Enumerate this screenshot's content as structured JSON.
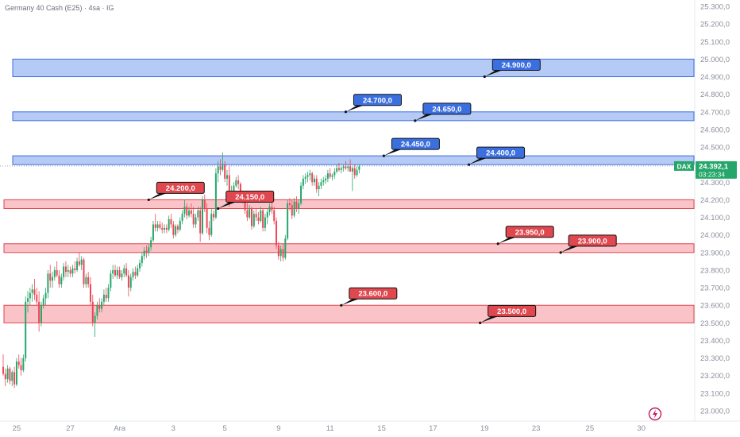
{
  "header": {
    "title": "Germany 40 Cash (E25) · 4sa · IG"
  },
  "price_tag": {
    "symbol": "DAX",
    "price": "24.392,1",
    "countdown": "03:23:34"
  },
  "chart_data": {
    "type": "candlestick",
    "ylim": [
      23000,
      25300
    ],
    "y_ticks": [
      {
        "value": 25300,
        "label": "25.300,0"
      },
      {
        "value": 25200,
        "label": "25.200,0"
      },
      {
        "value": 25100,
        "label": "25.100,0"
      },
      {
        "value": 25000,
        "label": "25.000,0"
      },
      {
        "value": 24900,
        "label": "24.900,0"
      },
      {
        "value": 24800,
        "label": "24.800,0"
      },
      {
        "value": 24700,
        "label": "24.700,0"
      },
      {
        "value": 24600,
        "label": "24.600,0"
      },
      {
        "value": 24500,
        "label": "24.500,0"
      },
      {
        "value": 24400,
        "label": "24.400,0"
      },
      {
        "value": 24300,
        "label": "24.300,0"
      },
      {
        "value": 24200,
        "label": "24.200,0"
      },
      {
        "value": 24100,
        "label": "24.100,0"
      },
      {
        "value": 24000,
        "label": "24.000,0"
      },
      {
        "value": 23900,
        "label": "23.900,0"
      },
      {
        "value": 23800,
        "label": "23.800,0"
      },
      {
        "value": 23700,
        "label": "23.700,0"
      },
      {
        "value": 23600,
        "label": "23.600,0"
      },
      {
        "value": 23500,
        "label": "23.500,0"
      },
      {
        "value": 23400,
        "label": "23.400,0"
      },
      {
        "value": 23300,
        "label": "23.300,0"
      },
      {
        "value": 23200,
        "label": "23.200,0"
      },
      {
        "value": 23100,
        "label": "23.100,0"
      },
      {
        "value": 23000,
        "label": "23.000,0"
      }
    ],
    "x_ticks": [
      {
        "label": "25",
        "bar": 6
      },
      {
        "label": "27",
        "bar": 30
      },
      {
        "label": "Ara",
        "bar": 52
      },
      {
        "label": "3",
        "bar": 76
      },
      {
        "label": "5",
        "bar": 99
      },
      {
        "label": "9",
        "bar": 123
      },
      {
        "label": "11",
        "bar": 146
      },
      {
        "label": "15",
        "bar": 169
      },
      {
        "label": "17",
        "bar": 192
      },
      {
        "label": "19",
        "bar": 215
      },
      {
        "label": "23",
        "bar": 238
      },
      {
        "label": "25",
        "bar": 262
      },
      {
        "label": "30",
        "bar": 285
      }
    ],
    "zones": [
      {
        "top": 25000,
        "bottom": 24900,
        "color": "#3b6fe0",
        "fill": "#a9c1f5",
        "start_bar": 5
      },
      {
        "top": 24700,
        "bottom": 24650,
        "color": "#3b6fe0",
        "fill": "#a9c1f5",
        "start_bar": 5
      },
      {
        "top": 24450,
        "bottom": 24400,
        "color": "#3b6fe0",
        "fill": "#a9c1f5",
        "start_bar": 5
      },
      {
        "top": 24200,
        "bottom": 24150,
        "color": "#e0474f",
        "fill": "#f8b8bd",
        "start_bar": 1
      },
      {
        "top": 23950,
        "bottom": 23900,
        "color": "#e0474f",
        "fill": "#f8b8bd",
        "start_bar": 1
      },
      {
        "top": 23600,
        "bottom": 23500,
        "color": "#e0474f",
        "fill": "#f8b8bd",
        "start_bar": 1
      }
    ],
    "callouts": [
      {
        "label": "24.900,0",
        "value": 24900,
        "bar": 215,
        "kind": "resistance"
      },
      {
        "label": "24.700,0",
        "value": 24700,
        "bar": 153,
        "kind": "resistance"
      },
      {
        "label": "24.650,0",
        "value": 24650,
        "bar": 184,
        "kind": "resistance"
      },
      {
        "label": "24.450,0",
        "value": 24450,
        "bar": 170,
        "kind": "resistance"
      },
      {
        "label": "24.400,0",
        "value": 24400,
        "bar": 208,
        "kind": "resistance"
      },
      {
        "label": "24.200,0",
        "value": 24200,
        "bar": 65,
        "kind": "support"
      },
      {
        "label": "24.150,0",
        "value": 24150,
        "bar": 96,
        "kind": "support"
      },
      {
        "label": "23.950,0",
        "value": 23950,
        "bar": 221,
        "kind": "support"
      },
      {
        "label": "23.900,0",
        "value": 23900,
        "bar": 249,
        "kind": "support"
      },
      {
        "label": "23.600,0",
        "value": 23600,
        "bar": 151,
        "kind": "support"
      },
      {
        "label": "23.500,0",
        "value": 23500,
        "bar": 213,
        "kind": "support"
      }
    ],
    "current_price": 24392.1,
    "colors": {
      "up": "#26a66b",
      "down": "#ee4655",
      "resistance": "#3b6fe0",
      "support": "#e0474f"
    },
    "candles": [
      [
        23250,
        23320,
        23200,
        23210
      ],
      [
        23210,
        23240,
        23140,
        23180
      ],
      [
        23180,
        23260,
        23160,
        23240
      ],
      [
        23240,
        23250,
        23150,
        23170
      ],
      [
        23170,
        23230,
        23140,
        23220
      ],
      [
        23220,
        23250,
        23130,
        23150
      ],
      [
        23150,
        23300,
        23140,
        23280
      ],
      [
        23280,
        23320,
        23240,
        23260
      ],
      [
        23260,
        23300,
        23200,
        23230
      ],
      [
        23230,
        23320,
        23220,
        23300
      ],
      [
        23300,
        23650,
        23280,
        23620
      ],
      [
        23620,
        23680,
        23560,
        23640
      ],
      [
        23640,
        23700,
        23600,
        23670
      ],
      [
        23670,
        23720,
        23620,
        23690
      ],
      [
        23690,
        23750,
        23630,
        23660
      ],
      [
        23660,
        23700,
        23600,
        23620
      ],
      [
        23620,
        23680,
        23450,
        23500
      ],
      [
        23500,
        23620,
        23480,
        23600
      ],
      [
        23600,
        23660,
        23580,
        23640
      ],
      [
        23640,
        23700,
        23600,
        23670
      ],
      [
        23670,
        23800,
        23640,
        23780
      ],
      [
        23780,
        23830,
        23700,
        23740
      ],
      [
        23740,
        23790,
        23700,
        23760
      ],
      [
        23760,
        23820,
        23740,
        23800
      ],
      [
        23800,
        23850,
        23760,
        23770
      ],
      [
        23770,
        23800,
        23700,
        23720
      ],
      [
        23720,
        23780,
        23700,
        23760
      ],
      [
        23760,
        23840,
        23740,
        23820
      ],
      [
        23820,
        23850,
        23760,
        23790
      ],
      [
        23790,
        23830,
        23760,
        23800
      ],
      [
        23800,
        23820,
        23760,
        23780
      ],
      [
        23780,
        23830,
        23760,
        23810
      ],
      [
        23810,
        23850,
        23780,
        23800
      ],
      [
        23800,
        23870,
        23790,
        23850
      ],
      [
        23850,
        23900,
        23820,
        23830
      ],
      [
        23830,
        23880,
        23800,
        23860
      ],
      [
        23860,
        23870,
        23700,
        23720
      ],
      [
        23720,
        23780,
        23700,
        23760
      ],
      [
        23760,
        23790,
        23700,
        23720
      ],
      [
        23720,
        23760,
        23600,
        23620
      ],
      [
        23620,
        23660,
        23480,
        23500
      ],
      [
        23500,
        23560,
        23420,
        23540
      ],
      [
        23540,
        23620,
        23520,
        23600
      ],
      [
        23600,
        23640,
        23560,
        23580
      ],
      [
        23580,
        23640,
        23560,
        23620
      ],
      [
        23620,
        23690,
        23600,
        23660
      ],
      [
        23660,
        23700,
        23620,
        23640
      ],
      [
        23640,
        23720,
        23620,
        23700
      ],
      [
        23700,
        23800,
        23680,
        23780
      ],
      [
        23780,
        23830,
        23750,
        23800
      ],
      [
        23800,
        23830,
        23760,
        23770
      ],
      [
        23770,
        23820,
        23750,
        23800
      ],
      [
        23800,
        23820,
        23750,
        23760
      ],
      [
        23760,
        23800,
        23740,
        23780
      ],
      [
        23780,
        23830,
        23760,
        23810
      ],
      [
        23810,
        23840,
        23760,
        23770
      ],
      [
        23770,
        23800,
        23650,
        23700
      ],
      [
        23700,
        23780,
        23680,
        23760
      ],
      [
        23760,
        23810,
        23740,
        23790
      ],
      [
        23790,
        23820,
        23750,
        23770
      ],
      [
        23770,
        23830,
        23760,
        23810
      ],
      [
        23810,
        23860,
        23790,
        23840
      ],
      [
        23840,
        23900,
        23820,
        23880
      ],
      [
        23880,
        23930,
        23860,
        23910
      ],
      [
        23910,
        23940,
        23870,
        23900
      ],
      [
        23900,
        23950,
        23880,
        23930
      ],
      [
        23930,
        23990,
        23910,
        23970
      ],
      [
        23970,
        24080,
        23960,
        24060
      ],
      [
        24060,
        24120,
        24020,
        24040
      ],
      [
        24040,
        24080,
        24020,
        24060
      ],
      [
        24060,
        24080,
        24030,
        24040
      ],
      [
        24040,
        24070,
        24010,
        24030
      ],
      [
        24030,
        24060,
        24010,
        24040
      ],
      [
        24040,
        24060,
        24010,
        24030
      ],
      [
        24030,
        24110,
        24020,
        24090
      ],
      [
        24090,
        24120,
        24040,
        24060
      ],
      [
        24060,
        24080,
        23980,
        24000
      ],
      [
        24000,
        24060,
        23990,
        24050
      ],
      [
        24050,
        24060,
        24010,
        24030
      ],
      [
        24030,
        24100,
        24020,
        24080
      ],
      [
        24080,
        24140,
        24060,
        24120
      ],
      [
        24120,
        24200,
        24100,
        24160
      ],
      [
        24160,
        24180,
        24090,
        24110
      ],
      [
        24110,
        24160,
        24100,
        24140
      ],
      [
        24140,
        24180,
        24100,
        24120
      ],
      [
        24120,
        24160,
        24040,
        24060
      ],
      [
        24060,
        24120,
        24040,
        24100
      ],
      [
        24100,
        24160,
        24080,
        24140
      ],
      [
        24140,
        24160,
        23960,
        24010
      ],
      [
        24010,
        24220,
        24000,
        24200
      ],
      [
        24200,
        24230,
        24130,
        24150
      ],
      [
        24150,
        24180,
        24010,
        24040
      ],
      [
        24040,
        24080,
        23970,
        24000
      ],
      [
        24000,
        24150,
        23990,
        24120
      ],
      [
        24120,
        24140,
        24080,
        24100
      ],
      [
        24100,
        24380,
        24090,
        24350
      ],
      [
        24350,
        24420,
        24300,
        24390
      ],
      [
        24390,
        24430,
        24340,
        24370
      ],
      [
        24370,
        24470,
        24360,
        24400
      ],
      [
        24400,
        24420,
        24300,
        24320
      ],
      [
        24320,
        24370,
        24280,
        24340
      ],
      [
        24340,
        24390,
        24160,
        24200
      ],
      [
        24200,
        24280,
        24180,
        24250
      ],
      [
        24250,
        24300,
        24240,
        24280
      ],
      [
        24280,
        24330,
        24270,
        24310
      ],
      [
        24310,
        24340,
        24260,
        24290
      ],
      [
        24290,
        24300,
        24190,
        24210
      ],
      [
        24210,
        24240,
        24180,
        24200
      ],
      [
        24200,
        24220,
        24120,
        24140
      ],
      [
        24140,
        24180,
        24080,
        24100
      ],
      [
        24100,
        24170,
        24090,
        24150
      ],
      [
        24150,
        24160,
        24030,
        24050
      ],
      [
        24050,
        24140,
        24040,
        24120
      ],
      [
        24120,
        24150,
        24080,
        24100
      ],
      [
        24100,
        24130,
        24060,
        24080
      ],
      [
        24080,
        24160,
        24070,
        24140
      ],
      [
        24140,
        24150,
        24020,
        24040
      ],
      [
        24040,
        24120,
        24020,
        24100
      ],
      [
        24100,
        24150,
        24060,
        24130
      ],
      [
        24130,
        24180,
        24110,
        24160
      ],
      [
        24160,
        24190,
        24120,
        24140
      ],
      [
        24140,
        24160,
        24060,
        24080
      ],
      [
        24080,
        24100,
        23920,
        23940
      ],
      [
        23940,
        23960,
        23860,
        23880
      ],
      [
        23880,
        23940,
        23850,
        23920
      ],
      [
        23920,
        23950,
        23850,
        23870
      ],
      [
        23870,
        24000,
        23860,
        23980
      ],
      [
        23980,
        24200,
        23970,
        24180
      ],
      [
        24180,
        24210,
        24140,
        24170
      ],
      [
        24170,
        24200,
        24090,
        24110
      ],
      [
        24110,
        24210,
        24100,
        24190
      ],
      [
        24190,
        24220,
        24130,
        24150
      ],
      [
        24150,
        24200,
        24120,
        24180
      ],
      [
        24180,
        24300,
        24170,
        24280
      ],
      [
        24280,
        24340,
        24260,
        24320
      ],
      [
        24320,
        24350,
        24290,
        24330
      ],
      [
        24330,
        24360,
        24300,
        24340
      ],
      [
        24340,
        24370,
        24310,
        24350
      ],
      [
        24350,
        24360,
        24280,
        24300
      ],
      [
        24300,
        24340,
        24280,
        24320
      ],
      [
        24320,
        24340,
        24240,
        24260
      ],
      [
        24260,
        24300,
        24220,
        24280
      ],
      [
        24280,
        24320,
        24260,
        24300
      ],
      [
        24300,
        24330,
        24280,
        24310
      ],
      [
        24310,
        24340,
        24290,
        24320
      ],
      [
        24320,
        24370,
        24300,
        24350
      ],
      [
        24350,
        24380,
        24320,
        24330
      ],
      [
        24330,
        24350,
        24310,
        24340
      ],
      [
        24340,
        24380,
        24320,
        24360
      ],
      [
        24360,
        24400,
        24350,
        24380
      ],
      [
        24380,
        24410,
        24360,
        24370
      ],
      [
        24370,
        24390,
        24350,
        24380
      ],
      [
        24380,
        24400,
        24360,
        24390
      ],
      [
        24390,
        24420,
        24370,
        24380
      ],
      [
        24380,
        24400,
        24360,
        24390
      ],
      [
        24390,
        24430,
        24370,
        24360
      ],
      [
        24360,
        24390,
        24250,
        24380
      ],
      [
        24380,
        24400,
        24320,
        24340
      ],
      [
        24340,
        24390,
        24330,
        24370
      ],
      [
        24370,
        24400,
        24350,
        24390
      ]
    ]
  }
}
